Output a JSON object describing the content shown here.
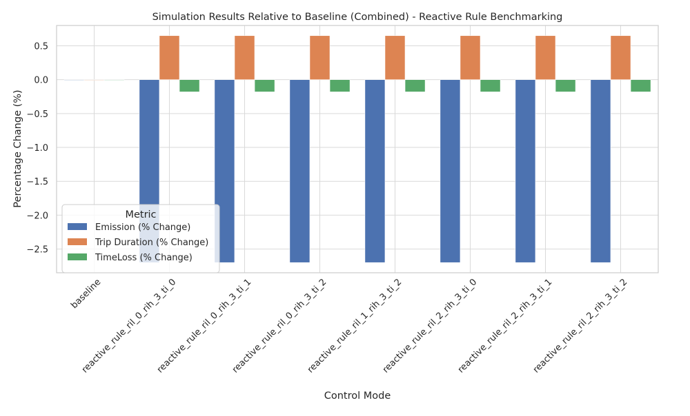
{
  "chart_data": {
    "type": "bar",
    "title": "Simulation Results Relative to Baseline (Combined) - Reactive Rule Benchmarking",
    "xlabel": "Control Mode",
    "ylabel": "Percentage Change (%)",
    "ylim": [
      -2.85,
      0.8
    ],
    "yticks": [
      0.5,
      0.0,
      -0.5,
      -1.0,
      -1.5,
      -2.0,
      -2.5
    ],
    "ytick_labels": [
      "0.5",
      "0.0",
      "−0.5",
      "−1.0",
      "−1.5",
      "−2.0",
      "−2.5"
    ],
    "grid": true,
    "legend_position": "lower-left",
    "legend_title": "Metric",
    "categories": [
      "baseline",
      "reactive_rule_ril_0_rih_3_ti_0",
      "reactive_rule_ril_0_rih_3_ti_1",
      "reactive_rule_ril_0_rih_3_ti_2",
      "reactive_rule_ril_1_rih_3_ti_2",
      "reactive_rule_ril_2_rih_3_ti_0",
      "reactive_rule_ril_2_rih_3_ti_1",
      "reactive_rule_ril_2_rih_3_ti_2"
    ],
    "series": [
      {
        "name": "Emission (% Change)",
        "color": "#4c72b0",
        "values": [
          0.0,
          -2.7,
          -2.7,
          -2.7,
          -2.7,
          -2.7,
          -2.7,
          -2.7
        ]
      },
      {
        "name": "Trip Duration (% Change)",
        "color": "#dd8452",
        "values": [
          0.0,
          0.65,
          0.65,
          0.65,
          0.65,
          0.65,
          0.65,
          0.65
        ]
      },
      {
        "name": "TimeLoss (% Change)",
        "color": "#55a868",
        "values": [
          0.0,
          -0.18,
          -0.18,
          -0.18,
          -0.18,
          -0.18,
          -0.18,
          -0.18
        ]
      }
    ]
  }
}
